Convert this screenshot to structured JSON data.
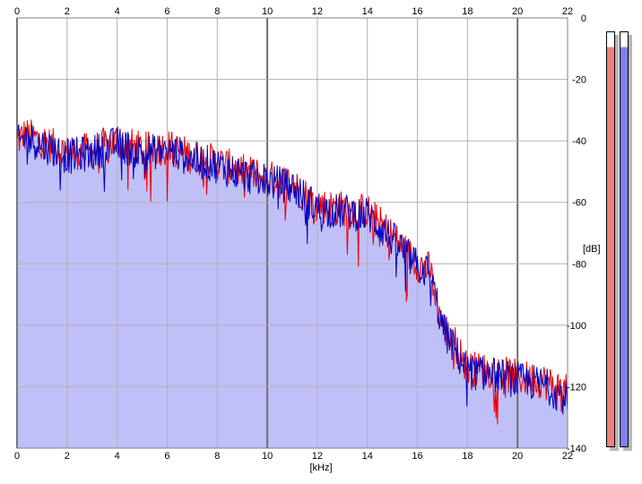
{
  "chart_data": {
    "type": "area",
    "title": "",
    "xlabel": "[kHz]",
    "ylabel": "[dB]",
    "xlim": [
      0,
      22
    ],
    "ylim": [
      -140,
      0
    ],
    "x_ticks": [
      0,
      2,
      4,
      6,
      8,
      10,
      12,
      14,
      16,
      18,
      20,
      22
    ],
    "y_ticks": [
      0,
      -20,
      -40,
      -60,
      -80,
      -100,
      -120,
      -140
    ],
    "grid": true,
    "fill_color": "#c0c0f8",
    "series": [
      {
        "color": "#ee0000",
        "x": [
          0,
          0.3,
          1,
          2,
          3,
          4,
          5,
          6,
          7,
          8,
          9,
          10,
          11,
          12,
          13,
          14,
          15,
          16,
          16.5,
          17,
          17.5,
          18,
          19,
          20,
          21,
          22
        ],
        "values": [
          -40,
          -38,
          -40,
          -44,
          -43,
          -40,
          -43,
          -42,
          -45,
          -47,
          -50,
          -52,
          -54,
          -61,
          -62,
          -63,
          -71,
          -80,
          -82,
          -100,
          -106,
          -114,
          -115,
          -117,
          -118,
          -122
        ]
      },
      {
        "color": "#0000c0",
        "x": [
          0,
          0.3,
          1,
          2,
          3,
          4,
          5,
          6,
          7,
          8,
          9,
          10,
          11,
          12,
          13,
          14,
          15,
          16,
          16.5,
          17,
          17.5,
          18,
          19,
          20,
          21,
          22
        ],
        "values": [
          -41,
          -39,
          -41,
          -45,
          -44,
          -41,
          -44,
          -43,
          -46,
          -48,
          -51,
          -53,
          -55,
          -62,
          -63,
          -64,
          -72,
          -81,
          -83,
          -101,
          -108,
          -115,
          -116,
          -118,
          -119,
          -124
        ]
      }
    ],
    "level_meters": [
      {
        "channel": "left",
        "color": "#f08080",
        "level_db": -5
      },
      {
        "channel": "right",
        "color": "#8080f0",
        "level_db": -5
      }
    ]
  }
}
